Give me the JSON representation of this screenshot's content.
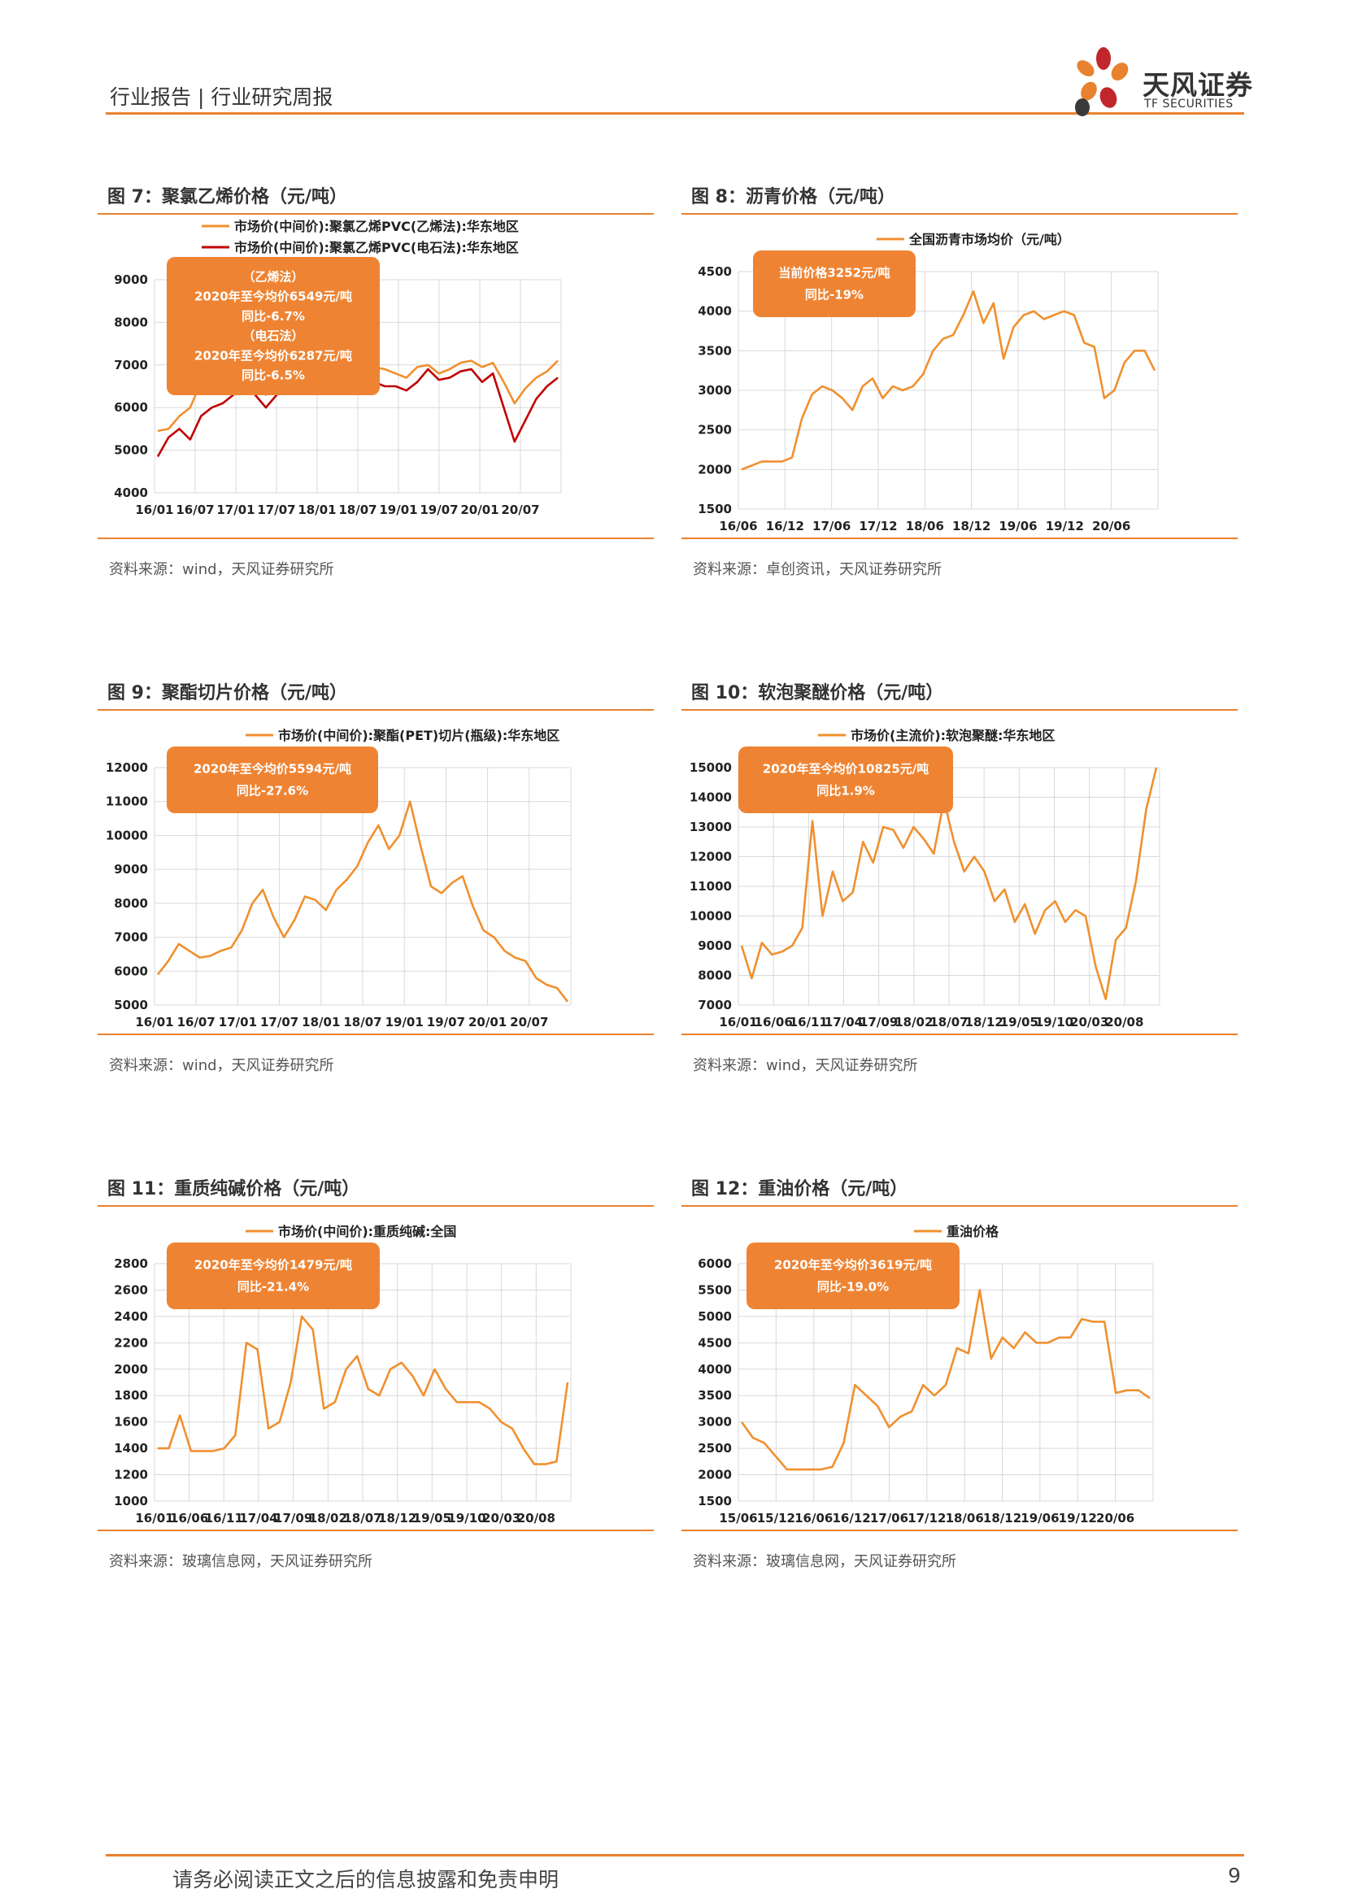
{
  "header": {
    "title": "行业报告 | 行业研究周报",
    "logo_cn": "天风证券",
    "logo_en": "TF SECURITIES"
  },
  "figures": [
    {
      "title": "图 7：聚氯乙烯价格（元/吨）",
      "source": "资料来源：wind，天风证券研究所",
      "annotation": [
        "（乙烯法）",
        "2020年至今均价6549元/吨",
        "同比-6.7%",
        "（电石法）",
        "2020年至今均价6287元/吨",
        "同比-6.5%"
      ],
      "chart_data": {
        "type": "line",
        "title": "",
        "xlabel": "",
        "ylabel": "",
        "x_ticks": [
          "16/01",
          "16/07",
          "17/01",
          "17/07",
          "18/01",
          "18/07",
          "19/01",
          "19/07",
          "20/01",
          "20/07"
        ],
        "y_ticks": [
          4000,
          5000,
          6000,
          7000,
          8000,
          9000
        ],
        "ylim": [
          4000,
          9000
        ],
        "grid": true,
        "legend_position": "top",
        "series": [
          {
            "name": "市场价(中间价):聚氯乙烯PVC(乙烯法):华东地区",
            "color": "#f0902f",
            "values": [
              5450,
              5500,
              5800,
              6000,
              6600,
              6800,
              6500,
              6900,
              7000,
              6700,
              6300,
              6500,
              6800,
              7000,
              6900,
              7100,
              7050,
              7300,
              7150,
              7000,
              6950,
              6900,
              6800,
              6700,
              6950,
              7000,
              6800,
              6900,
              7050,
              7100,
              6950,
              7050,
              6600,
              6100,
              6450,
              6700,
              6850,
              7100
            ]
          },
          {
            "name": "市场价(中间价):聚氯乙烯PVC(电石法):华东地区",
            "color": "#c00000",
            "values": [
              4850,
              5300,
              5500,
              5250,
              5800,
              6000,
              6100,
              6300,
              6600,
              6300,
              6000,
              6300,
              6500,
              6900,
              6800,
              6900,
              6800,
              7150,
              6900,
              6700,
              6600,
              6500,
              6500,
              6400,
              6600,
              6900,
              6650,
              6700,
              6850,
              6900,
              6600,
              6800,
              6000,
              5200,
              5700,
              6200,
              6500,
              6700
            ]
          }
        ]
      }
    },
    {
      "title": "图 8：沥青价格（元/吨）",
      "source": "资料来源：卓创资讯，天风证券研究所",
      "annotation": [
        "当前价格3252元/吨",
        "同比-19%"
      ],
      "chart_data": {
        "type": "line",
        "title": "",
        "xlabel": "",
        "ylabel": "",
        "x_ticks": [
          "16/06",
          "16/12",
          "17/06",
          "17/12",
          "18/06",
          "18/12",
          "19/06",
          "19/12",
          "20/06"
        ],
        "y_ticks": [
          1500,
          2000,
          2500,
          3000,
          3500,
          4000,
          4500
        ],
        "ylim": [
          1500,
          4500
        ],
        "grid": true,
        "legend_position": "top",
        "series": [
          {
            "name": "全国沥青市场均价（元/吨）",
            "color": "#f0902f",
            "values": [
              2000,
              2050,
              2100,
              2100,
              2100,
              2150,
              2650,
              2950,
              3050,
              3000,
              2900,
              2750,
              3050,
              3150,
              2900,
              3050,
              3000,
              3050,
              3200,
              3500,
              3650,
              3700,
              3950,
              4250,
              3850,
              4100,
              3400,
              3800,
              3950,
              4000,
              3900,
              3950,
              4000,
              3950,
              3600,
              3550,
              2900,
              3000,
              3350,
              3500,
              3500,
              3250
            ]
          }
        ]
      }
    },
    {
      "title": "图 9：聚酯切片价格（元/吨）",
      "source": "资料来源：wind，天风证券研究所",
      "annotation": [
        "2020年至今均价5594元/吨",
        "同比-27.6%"
      ],
      "chart_data": {
        "type": "line",
        "title": "",
        "xlabel": "",
        "ylabel": "",
        "x_ticks": [
          "16/01",
          "16/07",
          "17/01",
          "17/07",
          "18/01",
          "18/07",
          "19/01",
          "19/07",
          "20/01",
          "20/07"
        ],
        "y_ticks": [
          5000,
          6000,
          7000,
          8000,
          9000,
          10000,
          11000,
          12000
        ],
        "ylim": [
          5000,
          12000
        ],
        "grid": true,
        "legend_position": "top",
        "series": [
          {
            "name": "市场价(中间价):聚酯(PET)切片(瓶级):华东地区",
            "color": "#f0902f",
            "values": [
              5900,
              6300,
              6800,
              6600,
              6400,
              6450,
              6600,
              6700,
              7200,
              8000,
              8400,
              7600,
              7000,
              7500,
              8200,
              8100,
              7800,
              8400,
              8700,
              9100,
              9800,
              10300,
              9600,
              10000,
              11000,
              9700,
              8500,
              8300,
              8600,
              8800,
              7900,
              7200,
              7000,
              6600,
              6400,
              6300,
              5800,
              5600,
              5500,
              5100
            ]
          }
        ]
      }
    },
    {
      "title": "图 10：软泡聚醚价格（元/吨）",
      "source": "资料来源：wind，天风证券研究所",
      "annotation": [
        "2020年至今均价10825元/吨",
        "同比1.9%"
      ],
      "chart_data": {
        "type": "line",
        "title": "",
        "xlabel": "",
        "ylabel": "",
        "x_ticks": [
          "16/01",
          "16/06",
          "16/11",
          "17/04",
          "17/09",
          "18/02",
          "18/07",
          "18/12",
          "19/05",
          "19/10",
          "20/03",
          "20/08"
        ],
        "y_ticks": [
          7000,
          8000,
          9000,
          10000,
          11000,
          12000,
          13000,
          14000,
          15000
        ],
        "ylim": [
          7000,
          15000
        ],
        "grid": true,
        "legend_position": "top",
        "series": [
          {
            "name": "市场价(主流价):软泡聚醚:华东地区",
            "color": "#f0902f",
            "values": [
              9000,
              7900,
              9100,
              8700,
              8800,
              9000,
              9600,
              13200,
              10000,
              11500,
              10500,
              10800,
              12500,
              11800,
              13000,
              12900,
              12300,
              13000,
              12600,
              12100,
              13900,
              12500,
              11500,
              12000,
              11500,
              10500,
              10900,
              9800,
              10400,
              9400,
              10200,
              10500,
              9800,
              10200,
              10000,
              8300,
              7200,
              9200,
              9600,
              11200,
              13600,
              15000
            ]
          }
        ]
      }
    },
    {
      "title": "图 11：重质纯碱价格（元/吨）",
      "source": "资料来源：玻璃信息网，天风证券研究所",
      "annotation": [
        "2020年至今均价1479元/吨",
        "同比-21.4%"
      ],
      "chart_data": {
        "type": "line",
        "title": "",
        "xlabel": "",
        "ylabel": "",
        "x_ticks": [
          "16/01",
          "16/06",
          "16/11",
          "17/04",
          "17/09",
          "18/02",
          "18/07",
          "18/12",
          "19/05",
          "19/10",
          "20/03",
          "20/08"
        ],
        "y_ticks": [
          1000,
          1200,
          1400,
          1600,
          1800,
          2000,
          2200,
          2400,
          2600,
          2800
        ],
        "ylim": [
          1000,
          2800
        ],
        "grid": true,
        "legend_position": "top",
        "series": [
          {
            "name": "市场价(中间价):重质纯碱:全国",
            "color": "#f0902f",
            "values": [
              1400,
              1400,
              1650,
              1380,
              1380,
              1380,
              1400,
              1500,
              2200,
              2150,
              1550,
              1600,
              1900,
              2400,
              2300,
              1700,
              1750,
              2000,
              2100,
              1850,
              1800,
              2000,
              2050,
              1950,
              1800,
              2000,
              1850,
              1750,
              1750,
              1750,
              1700,
              1600,
              1550,
              1400,
              1280,
              1280,
              1300,
              1900
            ]
          }
        ]
      }
    },
    {
      "title": "图 12：重油价格（元/吨）",
      "source": "资料来源：玻璃信息网，天风证券研究所",
      "annotation": [
        "2020年至今均价3619元/吨",
        "同比-19.0%"
      ],
      "chart_data": {
        "type": "line",
        "title": "",
        "xlabel": "",
        "ylabel": "",
        "x_ticks": [
          "15/06",
          "15/12",
          "16/06",
          "16/12",
          "17/06",
          "17/12",
          "18/06",
          "18/12",
          "19/06",
          "19/12",
          "20/06"
        ],
        "y_ticks": [
          1500,
          2000,
          2500,
          3000,
          3500,
          4000,
          4500,
          5000,
          5500,
          6000
        ],
        "ylim": [
          1500,
          6000
        ],
        "grid": true,
        "legend_position": "top",
        "series": [
          {
            "name": "重油价格",
            "color": "#f0902f",
            "values": [
              3000,
              2700,
              2600,
              2350,
              2100,
              2100,
              2100,
              2100,
              2150,
              2600,
              3700,
              3500,
              3300,
              2900,
              3100,
              3200,
              3700,
              3500,
              3700,
              4400,
              4300,
              5500,
              4200,
              4600,
              4400,
              4700,
              4500,
              4500,
              4600,
              4600,
              4950,
              4900,
              4900,
              3550,
              3600,
              3600,
              3450
            ]
          }
        ]
      }
    }
  ],
  "footer": {
    "disclaimer": "请务必阅读正文之后的信息披露和免责申明",
    "page": "9"
  }
}
